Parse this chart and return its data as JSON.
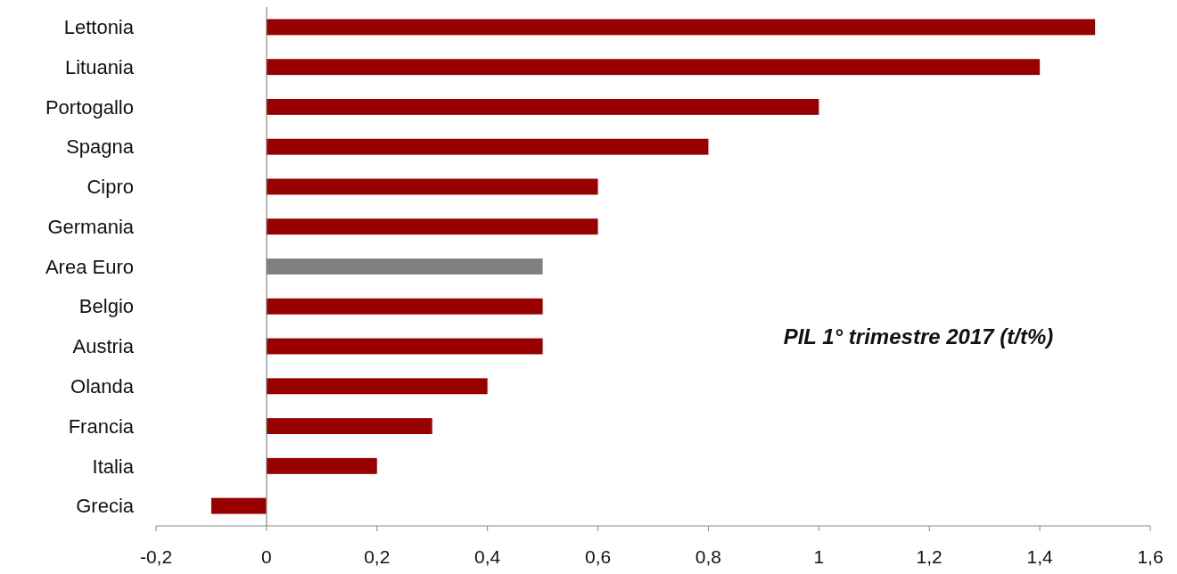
{
  "chart_data": {
    "type": "bar",
    "orientation": "horizontal",
    "title": "PIL 1° trimestre 2017 (t/t%)",
    "categories": [
      "Lettonia",
      "Lituania",
      "Portogallo",
      "Spagna",
      "Cipro",
      "Germania",
      "Area Euro",
      "Belgio",
      "Austria",
      "Olanda",
      "Francia",
      "Italia",
      "Grecia"
    ],
    "values": [
      1.5,
      1.4,
      1.0,
      0.8,
      0.6,
      0.6,
      0.5,
      0.5,
      0.5,
      0.4,
      0.3,
      0.2,
      -0.1
    ],
    "colors": [
      "#990000",
      "#990000",
      "#990000",
      "#990000",
      "#990000",
      "#990000",
      "#808080",
      "#990000",
      "#990000",
      "#990000",
      "#990000",
      "#990000",
      "#990000"
    ],
    "xlim": [
      -0.2,
      1.6
    ],
    "xticks": [
      {
        "value": -0.2,
        "label": "-0,2"
      },
      0,
      {
        "value": 0.2,
        "label": "0,2"
      },
      {
        "value": 0.4,
        "label": "0,4"
      },
      {
        "value": 0.6,
        "label": "0,6"
      },
      {
        "value": 0.8,
        "label": "0,8"
      },
      1,
      {
        "value": 1.2,
        "label": "1,2"
      },
      {
        "value": 1.4,
        "label": "1,4"
      },
      {
        "value": 1.6,
        "label": "1,6"
      }
    ],
    "tick_labels": true
  }
}
